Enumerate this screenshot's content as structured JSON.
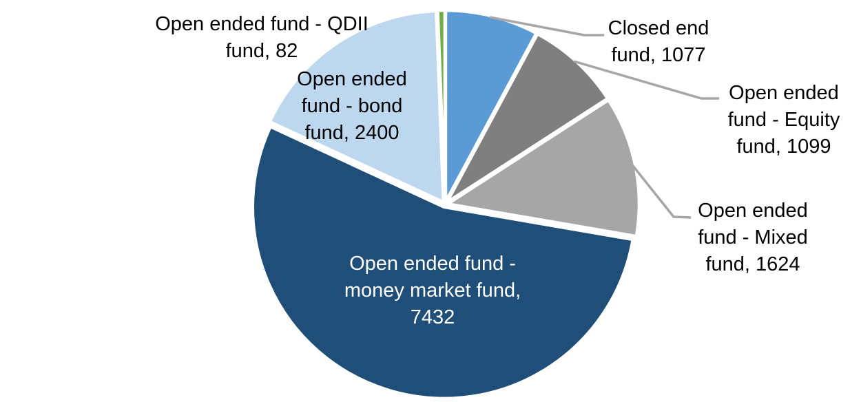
{
  "chart_data": {
    "type": "pie",
    "title": "",
    "direction": "clockwise",
    "start_angle_deg": 0,
    "legend": "none",
    "data_labels": "category name and value, outside with leader lines except largest slice inside",
    "segments": [
      {
        "label": "Closed end fund",
        "value": 1077,
        "color": "#5B9BD5"
      },
      {
        "label": "Open ended fund - Equity fund",
        "value": 1099,
        "color": "#7F7F7F"
      },
      {
        "label": "Open ended fund - Mixed fund",
        "value": 1624,
        "color": "#A6A6A6"
      },
      {
        "label": "Open ended fund - money market fund",
        "value": 7432,
        "color": "#1F4E79"
      },
      {
        "label": "Open ended fund - bond fund",
        "value": 2400,
        "color": "#BDD7EE"
      },
      {
        "label": "Open ended fund - QDII fund",
        "value": 82,
        "color": "#70AD47"
      }
    ],
    "slice_border_color": "#FFFFFF",
    "leader_line_color": "#A6A6A6",
    "data_label_outside_color": "#000000",
    "data_label_inside_color": "#FFFFFF"
  }
}
